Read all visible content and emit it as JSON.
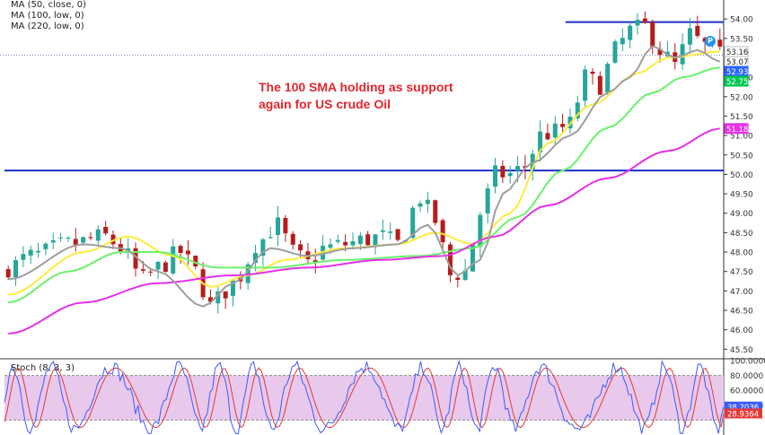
{
  "legend": {
    "ma50": "MA (50, close, 0)",
    "ma100": "MA (100, low, 0)",
    "ma220": "MA (220, low, 0)"
  },
  "annotation": {
    "line1": "The 100 SMA holding as support",
    "line2": "again for US crude Oil"
  },
  "stoch_label": "Stoch (8, 3, 3)",
  "colors": {
    "up": "#26a69a",
    "down": "#b71c1c",
    "ma50": "#ffeb3b",
    "ma100": "#69f26b",
    "ma220": "#e62fe6",
    "fast_ma": "#9e9e9e",
    "levels": "#1d2ec9",
    "annotation": "#e3262d",
    "stoch_k": "#3d5afe",
    "stoch_d": "#e53935",
    "stoch_bg": "#e8c9ec"
  },
  "chart_data": [
    {
      "type": "candlestick",
      "title": "",
      "ylim": [
        45.3,
        54.35
      ],
      "y_ticks": [
        54.0,
        53.5,
        52.5,
        52.0,
        51.5,
        51.0,
        50.5,
        50.0,
        49.5,
        49.0,
        48.5,
        48.0,
        47.5,
        47.0,
        46.5,
        46.0,
        45.5
      ],
      "price_badges": [
        {
          "value": 53.16,
          "color": "#ffffff",
          "text_color": "#222222"
        },
        {
          "value": 53.07,
          "color": "#ffffff",
          "text_color": "#222222"
        },
        {
          "value": 52.93,
          "color": "#2962ff",
          "text_color": "#ffffff"
        },
        {
          "value": 52.75,
          "color": "#00c853",
          "text_color": "#ffffff"
        },
        {
          "value": 51.18,
          "color": "#e62fe6",
          "text_color": "#ffffff"
        }
      ],
      "current_price": 53.07,
      "levels": [
        {
          "name": "resistance",
          "value": 53.92,
          "x_start": 0.78,
          "x_end": 1.0
        },
        {
          "name": "support",
          "value": 50.1,
          "x_start": 0.0,
          "x_end": 1.0
        }
      ],
      "close_anchors": [
        [
          0,
          47.6
        ],
        [
          3,
          47.9
        ],
        [
          8,
          48.2
        ],
        [
          13,
          48.4
        ],
        [
          15,
          48.1
        ],
        [
          18,
          47.3
        ],
        [
          20,
          47.6
        ],
        [
          23,
          48.0
        ],
        [
          25,
          47.5
        ],
        [
          27,
          46.6
        ],
        [
          29,
          47.0
        ],
        [
          31,
          47.4
        ],
        [
          33,
          48.2
        ],
        [
          36,
          48.7
        ],
        [
          38,
          48.0
        ],
        [
          40,
          47.7
        ],
        [
          42,
          48.1
        ],
        [
          45,
          48.2
        ],
        [
          47,
          48.3
        ],
        [
          50,
          48.4
        ],
        [
          52,
          48.2
        ],
        [
          55,
          49.4
        ],
        [
          57,
          48.8
        ],
        [
          59,
          47.4
        ],
        [
          61,
          47.5
        ],
        [
          63,
          49.0
        ],
        [
          65,
          50.0
        ],
        [
          67,
          50.0
        ],
        [
          69,
          50.2
        ],
        [
          71,
          51.0
        ],
        [
          73,
          51.1
        ],
        [
          75,
          51.3
        ],
        [
          77,
          52.5
        ],
        [
          79,
          52.3
        ],
        [
          81,
          53.2
        ],
        [
          83,
          53.7
        ],
        [
          85,
          53.8
        ],
        [
          87,
          53.2
        ],
        [
          89,
          52.8
        ],
        [
          91,
          53.6
        ],
        [
          93,
          53.3
        ],
        [
          95,
          53.07
        ]
      ],
      "series": [
        {
          "name": "MA (50, close, 0)",
          "anchors": [
            [
              0,
              46.9
            ],
            [
              10,
              48.0
            ],
            [
              16,
              48.4
            ],
            [
              22,
              47.9
            ],
            [
              27,
              47.1
            ],
            [
              32,
              47.4
            ],
            [
              37,
              47.8
            ],
            [
              45,
              48.1
            ],
            [
              52,
              48.2
            ],
            [
              57,
              48.5
            ],
            [
              62,
              48.2
            ],
            [
              67,
              49.0
            ],
            [
              72,
              50.8
            ],
            [
              78,
              51.8
            ],
            [
              84,
              52.6
            ],
            [
              88,
              53.0
            ],
            [
              95,
              53.16
            ]
          ]
        },
        {
          "name": "MA (100, low, 0)",
          "anchors": [
            [
              0,
              46.7
            ],
            [
              8,
              47.5
            ],
            [
              15,
              48.0
            ],
            [
              20,
              48.0
            ],
            [
              28,
              47.6
            ],
            [
              35,
              47.6
            ],
            [
              45,
              47.8
            ],
            [
              55,
              47.9
            ],
            [
              62,
              48.1
            ],
            [
              68,
              48.9
            ],
            [
              74,
              50.1
            ],
            [
              80,
              51.2
            ],
            [
              86,
              52.1
            ],
            [
              90,
              52.5
            ],
            [
              95,
              52.75
            ]
          ]
        },
        {
          "name": "MA (220, low, 0)",
          "anchors": [
            [
              0,
              45.9
            ],
            [
              10,
              46.7
            ],
            [
              20,
              47.2
            ],
            [
              30,
              47.4
            ],
            [
              40,
              47.6
            ],
            [
              50,
              47.8
            ],
            [
              58,
              47.9
            ],
            [
              65,
              48.4
            ],
            [
              72,
              49.2
            ],
            [
              80,
              49.9
            ],
            [
              88,
              50.6
            ],
            [
              95,
              51.18
            ]
          ]
        },
        {
          "name": "",
          "anchors": [
            [
              0,
              47.3
            ],
            [
              10,
              48.2
            ],
            [
              15,
              48.1
            ],
            [
              20,
              47.5
            ],
            [
              26,
              46.6
            ],
            [
              30,
              47.2
            ],
            [
              35,
              48.1
            ],
            [
              40,
              47.9
            ],
            [
              46,
              48.1
            ],
            [
              52,
              48.2
            ],
            [
              56,
              48.7
            ],
            [
              60,
              47.4
            ],
            [
              63,
              47.8
            ],
            [
              66,
              49.5
            ],
            [
              70,
              50.3
            ],
            [
              75,
              51.0
            ],
            [
              80,
              52.1
            ],
            [
              83,
              52.5
            ],
            [
              86,
              53.3
            ],
            [
              89,
              53.0
            ],
            [
              92,
              53.2
            ],
            [
              95,
              52.9
            ]
          ]
        }
      ]
    },
    {
      "type": "line",
      "title": "Stoch (8, 3, 3)",
      "ylim": [
        0,
        100
      ],
      "y_ticks": [
        100.0,
        80.0,
        60.0,
        40.0
      ],
      "bands": [
        20,
        80
      ],
      "value_badges": [
        {
          "value": 38.2036,
          "color": "#3d5afe",
          "text_color": "#ffffff"
        },
        {
          "value": 28.9364,
          "color": "#e53935",
          "text_color": "#ffffff"
        }
      ],
      "series": [
        {
          "name": "%K",
          "last": 38.2036
        },
        {
          "name": "%D",
          "last": 28.9364
        }
      ]
    }
  ]
}
